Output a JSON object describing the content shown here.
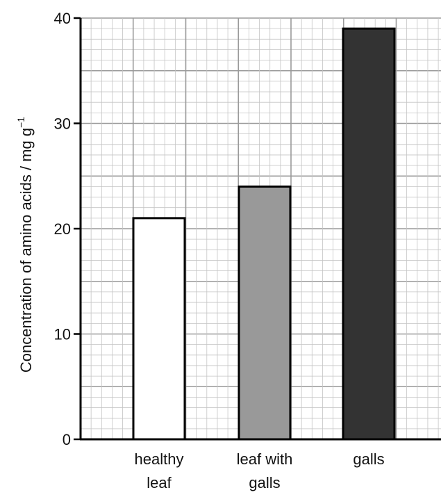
{
  "chart_data": {
    "type": "bar",
    "categories": [
      [
        "healthy",
        "leaf"
      ],
      [
        "leaf with",
        "galls"
      ],
      [
        "galls"
      ]
    ],
    "values": [
      21,
      24,
      39
    ],
    "bar_colors": [
      "#ffffff",
      "#999999",
      "#333333"
    ],
    "ylabel": "Concentration of amino acids / mg g",
    "ylabel_superscript": "−1",
    "ylim": [
      0,
      40
    ],
    "yticks": [
      0,
      10,
      20,
      30,
      40
    ],
    "grid": true
  }
}
